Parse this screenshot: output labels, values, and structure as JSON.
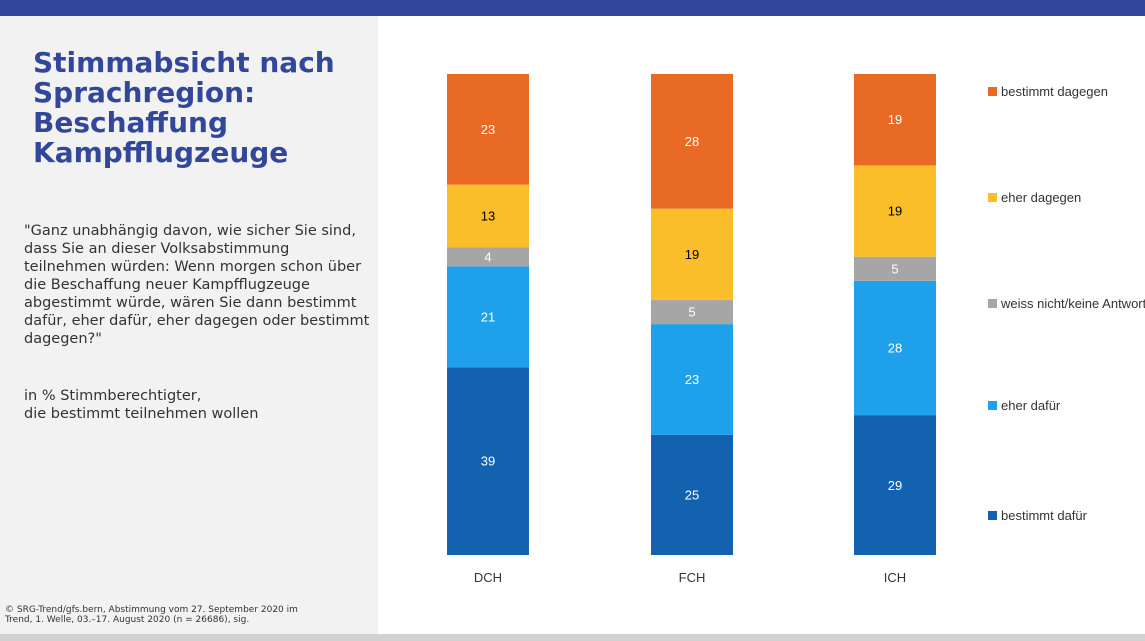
{
  "title": "Stimmabsicht nach Sprachregion: Beschaffung Kampfflugzeuge",
  "question": "\"Ganz unabhängig davon, wie sicher Sie sind, dass Sie an dieser Volksabstimmung teilnehmen würden: Wenn morgen schon über die Beschaffung neuer Kampfflugzeuge abgestimmt würde, wären Sie dann bestimmt dafür, eher dafür, eher dagegen oder bestimmt dagegen?\"",
  "unit_note_line1": "in % Stimmberechtigter,",
  "unit_note_line2": "die bestimmt teilnehmen wollen",
  "source_line1": "© SRG-Trend/gfs.bern, Abstimmung vom 27. September 2020 im",
  "source_line2": "Trend, 1. Welle, 03.–17. August 2020 (n = 26686), sig.",
  "colors": {
    "header_bar": "#33479a",
    "title": "#33479a",
    "panel_bg": "#f2f2f2"
  },
  "chart_data": {
    "type": "bar",
    "stacked": true,
    "categories": [
      "DCH",
      "FCH",
      "ICH"
    ],
    "ylim": [
      0,
      100
    ],
    "legend_position": "right",
    "series": [
      {
        "name": "bestimmt dafür",
        "values": [
          39,
          25,
          29
        ],
        "color": "#1262b0",
        "label_color": "#ffffff"
      },
      {
        "name": "eher dafür",
        "values": [
          21,
          23,
          28
        ],
        "color": "#1fa0ea",
        "label_color": "#ffffff"
      },
      {
        "name": "weiss nicht/keine Antwort",
        "values": [
          4,
          5,
          5
        ],
        "color": "#a6a6a6",
        "label_color": "#ffffff"
      },
      {
        "name": "eher dagegen",
        "values": [
          13,
          19,
          19
        ],
        "color": "#f9be2a",
        "label_color": "#000000"
      },
      {
        "name": "bestimmt dagegen",
        "values": [
          23,
          28,
          19
        ],
        "color": "#e86a24",
        "label_color": "#ffffff"
      }
    ],
    "legend_order": [
      "bestimmt dagegen",
      "eher dagegen",
      "weiss nicht/keine Antwort",
      "eher dafür",
      "bestimmt dafür"
    ]
  }
}
